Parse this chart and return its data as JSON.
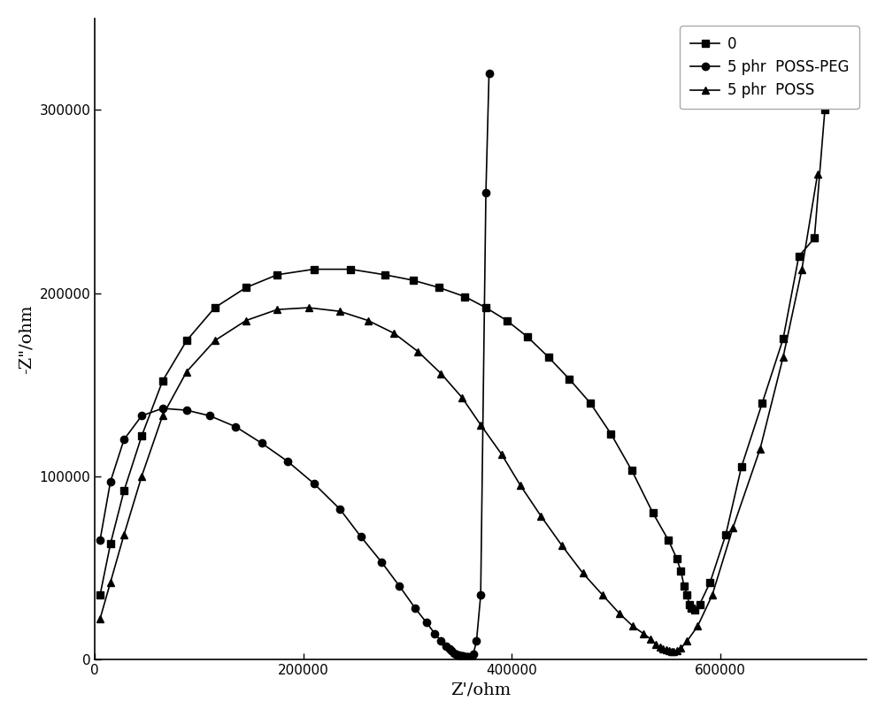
{
  "title": "",
  "xlabel": "Z'/ohm",
  "ylabel": "-Z\"/ohm",
  "xlim": [
    0,
    740000
  ],
  "ylim": [
    0,
    350000
  ],
  "background_color": "#ffffff",
  "legend_labels": [
    "0",
    "5 phr  POSS-PEG",
    "5 phr  POSS"
  ],
  "line_color": "#000000",
  "series": {
    "square": {
      "label": "0",
      "marker": "s",
      "x": [
        5000,
        15000,
        28000,
        45000,
        65000,
        88000,
        115000,
        145000,
        175000,
        210000,
        245000,
        278000,
        305000,
        330000,
        355000,
        375000,
        395000,
        415000,
        435000,
        455000,
        475000,
        495000,
        515000,
        535000,
        550000,
        558000,
        562000,
        565000,
        568000,
        570000,
        572000,
        575000,
        580000,
        590000,
        605000,
        620000,
        640000,
        660000,
        675000,
        690000,
        700000
      ],
      "y": [
        35000,
        63000,
        92000,
        122000,
        152000,
        174000,
        192000,
        203000,
        210000,
        213000,
        213000,
        210000,
        207000,
        203000,
        198000,
        192000,
        185000,
        176000,
        165000,
        153000,
        140000,
        123000,
        103000,
        80000,
        65000,
        55000,
        48000,
        40000,
        35000,
        30000,
        28000,
        27000,
        30000,
        42000,
        68000,
        105000,
        140000,
        175000,
        220000,
        230000,
        300000
      ]
    },
    "circle": {
      "label": "5 phr  POSS-PEG",
      "marker": "o",
      "x": [
        5000,
        15000,
        28000,
        45000,
        65000,
        88000,
        110000,
        135000,
        160000,
        185000,
        210000,
        235000,
        255000,
        275000,
        292000,
        307000,
        318000,
        326000,
        332000,
        337000,
        340000,
        342000,
        344000,
        346000,
        348000,
        349000,
        350000,
        351000,
        352000,
        353000,
        354000,
        355000,
        356000,
        357000,
        358000,
        359000,
        360000,
        361000,
        363000,
        366000,
        370000,
        375000,
        378000
      ],
      "y": [
        65000,
        97000,
        120000,
        133000,
        137000,
        136000,
        133000,
        127000,
        118000,
        108000,
        96000,
        82000,
        67000,
        53000,
        40000,
        28000,
        20000,
        14000,
        10000,
        7000,
        5500,
        4500,
        3500,
        3000,
        2500,
        2200,
        2000,
        1800,
        1700,
        1600,
        1500,
        1400,
        1300,
        1200,
        1100,
        1000,
        900,
        1000,
        3000,
        10000,
        35000,
        255000,
        320000
      ]
    },
    "triangle": {
      "label": "5 phr  POSS",
      "marker": "^",
      "x": [
        5000,
        15000,
        28000,
        45000,
        65000,
        88000,
        115000,
        145000,
        175000,
        205000,
        235000,
        262000,
        287000,
        310000,
        332000,
        352000,
        370000,
        390000,
        408000,
        428000,
        448000,
        468000,
        487000,
        503000,
        516000,
        526000,
        533000,
        538000,
        542000,
        545000,
        548000,
        551000,
        553000,
        555000,
        558000,
        562000,
        568000,
        578000,
        592000,
        612000,
        638000,
        660000,
        678000,
        693000
      ],
      "y": [
        22000,
        42000,
        68000,
        100000,
        133000,
        157000,
        174000,
        185000,
        191000,
        192000,
        190000,
        185000,
        178000,
        168000,
        156000,
        143000,
        128000,
        112000,
        95000,
        78000,
        62000,
        47000,
        35000,
        25000,
        18000,
        14000,
        11000,
        8000,
        6500,
        5500,
        5000,
        4500,
        4200,
        4000,
        4500,
        6000,
        10000,
        18000,
        35000,
        72000,
        115000,
        165000,
        213000,
        265000
      ]
    }
  }
}
